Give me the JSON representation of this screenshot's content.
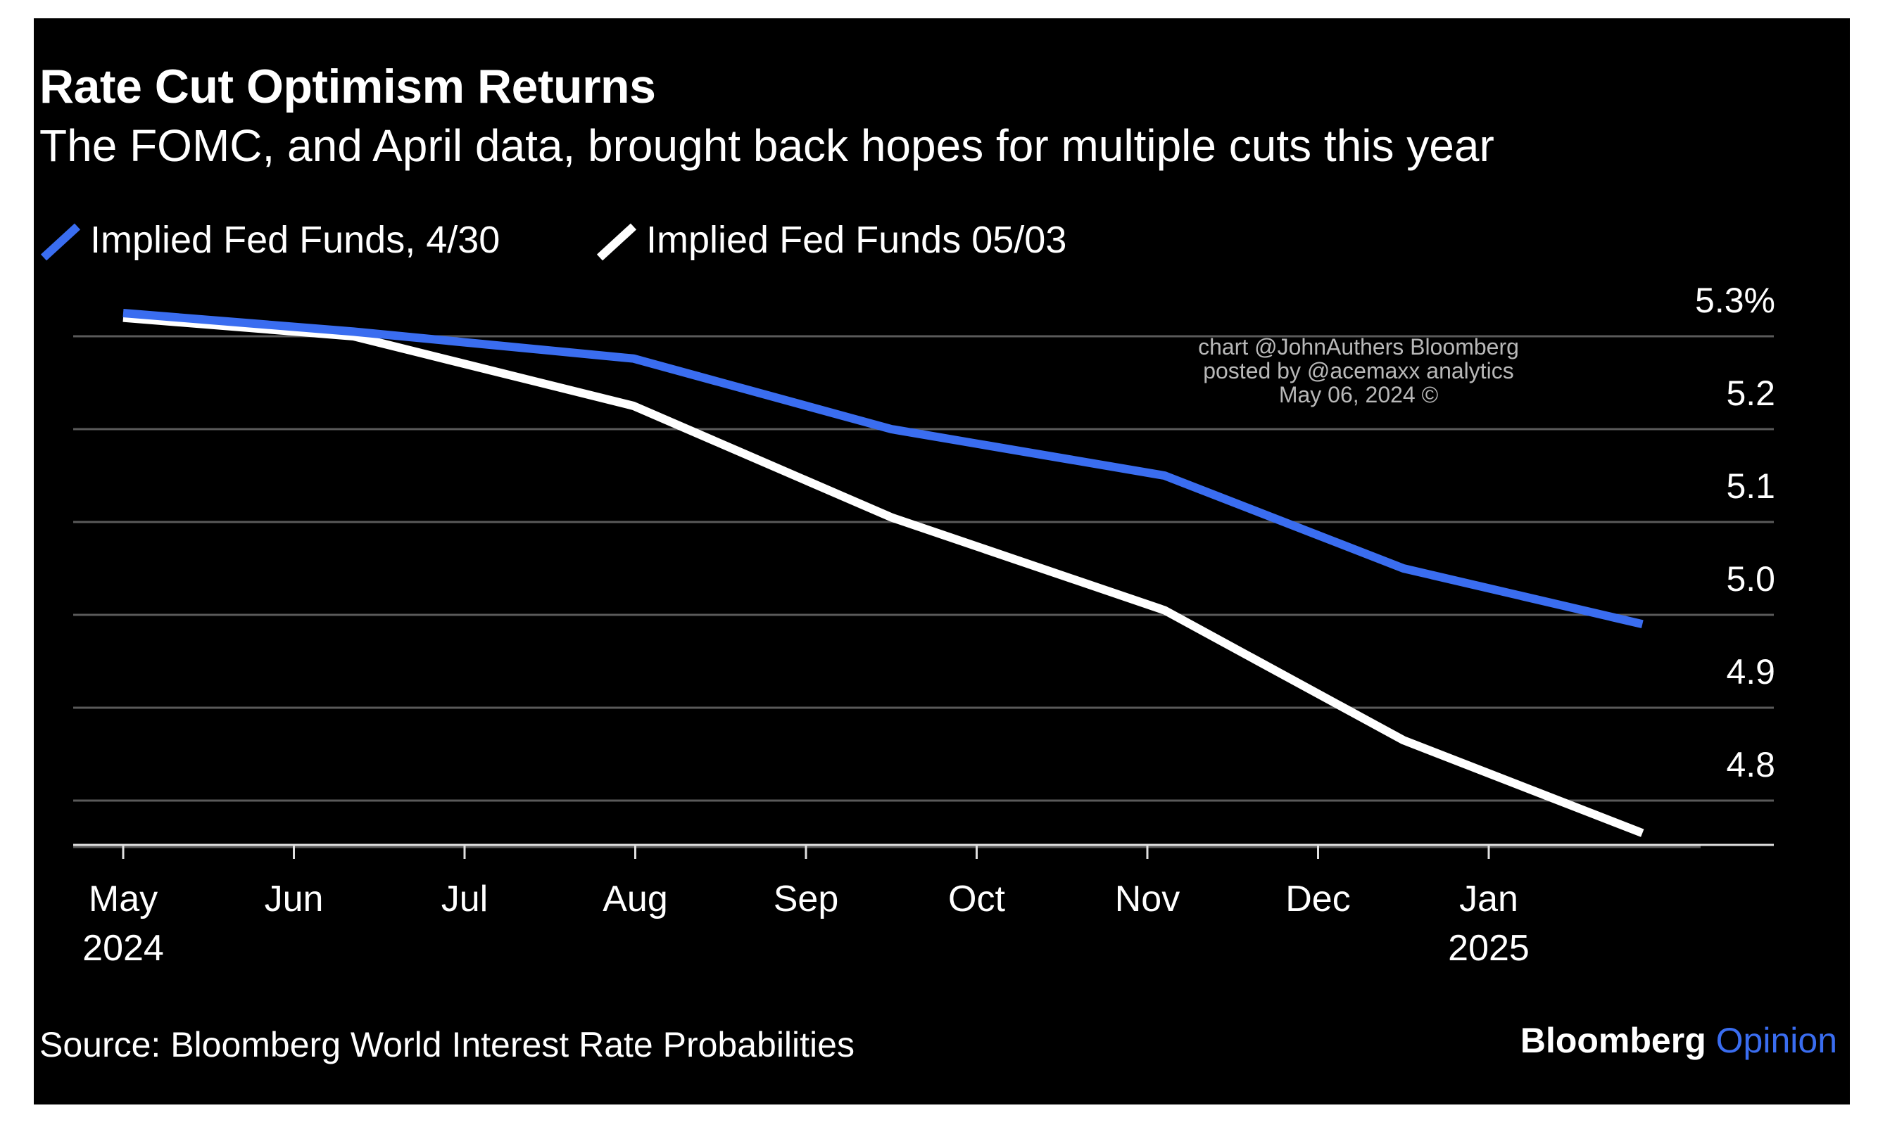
{
  "title": "Rate Cut Optimism Returns",
  "subtitle": "The FOMC, and April data, brought back hopes for multiple cuts this year",
  "legend": [
    {
      "label": "Implied Fed Funds, 4/30",
      "color": "#3a6df0"
    },
    {
      "label": "Implied Fed Funds 05/03",
      "color": "#ffffff"
    }
  ],
  "credit": [
    "chart @JohnAuthers Bloomberg",
    "posted by @acemaxx analytics",
    "May 06, 2024 ©"
  ],
  "source": "Source: Bloomberg World Interest Rate Probabilities",
  "brand": {
    "part1": "Bloomberg",
    "part2": "Opinion",
    "accent": "#3a6df0"
  },
  "chart_data": {
    "type": "line",
    "title": "Rate Cut Optimism Returns",
    "subtitle": "The FOMC, and April data, brought back hopes for multiple cuts this year",
    "x_ticks": [
      {
        "label": "May",
        "sub": "2024",
        "t": 0
      },
      {
        "label": "Jun",
        "sub": "",
        "t": 1
      },
      {
        "label": "Jul",
        "sub": "",
        "t": 2
      },
      {
        "label": "Aug",
        "sub": "",
        "t": 3
      },
      {
        "label": "Sep",
        "sub": "",
        "t": 4
      },
      {
        "label": "Oct",
        "sub": "",
        "t": 5
      },
      {
        "label": "Nov",
        "sub": "",
        "t": 6
      },
      {
        "label": "Dec",
        "sub": "",
        "t": 7
      },
      {
        "label": "Jan",
        "sub": "2025",
        "t": 8
      }
    ],
    "x_range": [
      0,
      9
    ],
    "y_ticks": [
      {
        "value": 5.3,
        "label": "5.3%"
      },
      {
        "value": 5.2,
        "label": "5.2"
      },
      {
        "value": 5.1,
        "label": "5.1"
      },
      {
        "value": 5.0,
        "label": "5.0"
      },
      {
        "value": 4.9,
        "label": "4.9"
      },
      {
        "value": 4.8,
        "label": "4.8"
      }
    ],
    "ylim": [
      4.73,
      5.3
    ],
    "grid": true,
    "legend_position": "top-left",
    "series": [
      {
        "name": "Implied Fed Funds, 4/30",
        "color": "#3a6df0",
        "points": [
          [
            0,
            5.325
          ],
          [
            1.35,
            5.305
          ],
          [
            2.99,
            5.276
          ],
          [
            4.5,
            5.2
          ],
          [
            6.1,
            5.15
          ],
          [
            7.5,
            5.05
          ],
          [
            8.9,
            4.99
          ]
        ]
      },
      {
        "name": "Implied Fed Funds 05/03",
        "color": "#ffffff",
        "points": [
          [
            0,
            5.32
          ],
          [
            1.35,
            5.3
          ],
          [
            2.99,
            5.225
          ],
          [
            4.5,
            5.105
          ],
          [
            6.1,
            5.005
          ],
          [
            7.5,
            4.865
          ],
          [
            8.9,
            4.765
          ]
        ]
      }
    ]
  }
}
